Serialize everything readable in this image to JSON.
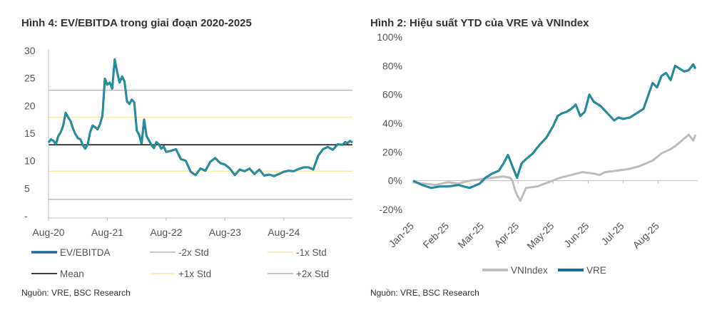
{
  "chart_data": [
    {
      "type": "line",
      "title": "Hình 4: EV/EBITDA trong giai đoạn 2020-2025",
      "source": "Nguồn: VRE, BSC Research",
      "xlabel": "",
      "ylabel": "",
      "x_tick_labels": [
        "Aug-20",
        "Aug-21",
        "Aug-22",
        "Aug-23",
        "Aug-24"
      ],
      "y_tick_labels": [
        "-",
        "5",
        "10",
        "15",
        "20",
        "25",
        "30"
      ],
      "y_ticks": [
        0,
        5,
        10,
        15,
        20,
        25,
        30
      ],
      "ylim": [
        0,
        30
      ],
      "xlim_months": [
        0,
        62
      ],
      "series": [
        {
          "name": "EV/EBITDA",
          "color": "#1a6a9a",
          "x_months": [
            0,
            0.5,
            1,
            1.5,
            2,
            2.5,
            3,
            3.5,
            4,
            4.5,
            5,
            5.5,
            6,
            6.5,
            7,
            7.5,
            8,
            8.5,
            9,
            9.5,
            10,
            10.5,
            11,
            11.5,
            12,
            12.5,
            13,
            13.5,
            14,
            14.5,
            15,
            15.5,
            16,
            16.5,
            17,
            17.5,
            18,
            18.5,
            19,
            19.5,
            20,
            20.5,
            21,
            21.5,
            22,
            22.5,
            23,
            23.5,
            24,
            25,
            26,
            27,
            28,
            29,
            30,
            31,
            32,
            33,
            34,
            35,
            36,
            37,
            38,
            39,
            40,
            41,
            42,
            43,
            44,
            45,
            46,
            47,
            48,
            49,
            50,
            51,
            52,
            53,
            54,
            55,
            56,
            57,
            58,
            59,
            60,
            60.5,
            61,
            61.5,
            62
          ],
          "values": [
            13.3,
            13.9,
            13.6,
            13.0,
            14.5,
            15.2,
            16.4,
            18.7,
            17.9,
            17.2,
            15.8,
            14.8,
            14.1,
            13.9,
            12.8,
            12.2,
            13.0,
            15.2,
            16.4,
            16.1,
            15.7,
            16.6,
            18.2,
            24.9,
            23.8,
            24.2,
            23.1,
            28.4,
            26.1,
            24.2,
            25.3,
            24.4,
            20.8,
            20.3,
            21.1,
            20.6,
            15.5,
            14.7,
            13.1,
            17.5,
            14.5,
            13.7,
            12.8,
            12.3,
            13.4,
            13.0,
            12.2,
            12.6,
            11.6,
            11.8,
            12.1,
            10.3,
            10.0,
            8.0,
            7.4,
            8.6,
            8.2,
            9.8,
            10.5,
            9.6,
            9.3,
            8.6,
            7.4,
            8.4,
            8.1,
            8.6,
            7.6,
            8.4,
            7.3,
            7.5,
            7.2,
            7.6,
            8.0,
            8.2,
            8.1,
            8.5,
            8.8,
            8.8,
            8.4,
            10.9,
            12.1,
            12.5,
            12.0,
            13.0,
            12.9,
            13.4,
            13.2,
            13.6,
            13.3
          ]
        },
        {
          "name": "-2x Std",
          "color": "#b8b8b8",
          "values": [
            3.0
          ]
        },
        {
          "name": "-1x Std",
          "color": "#fbe8a6",
          "values": [
            8.1
          ]
        },
        {
          "name": "Mean",
          "color": "#000000",
          "values": [
            12.9
          ]
        },
        {
          "name": "+1x Std",
          "color": "#fbe8a6",
          "values": [
            17.9
          ]
        },
        {
          "name": "+2x Std",
          "color": "#b8b8b8",
          "values": [
            22.8
          ]
        }
      ],
      "legend": [
        "EV/EBITDA",
        "-2x Std",
        "-1x Std",
        "Mean",
        "+1x Std",
        "+2x Std"
      ],
      "legend_position": "bottom",
      "grid": false
    },
    {
      "type": "line",
      "title": "Hình 2: Hiệu suất YTD của VRE và VNIndex",
      "source": "Nguồn: VRE, BSC Research",
      "xlabel": "",
      "ylabel": "",
      "x_tick_labels": [
        "Jan-25",
        "Feb-25",
        "Mar-25",
        "Apr-25",
        "May-25",
        "Jun-25",
        "Jul-25",
        "Aug-25"
      ],
      "y_tick_labels": [
        "-20%",
        "0%",
        "20%",
        "40%",
        "60%",
        "80%",
        "100%"
      ],
      "y_ticks": [
        -20,
        0,
        20,
        40,
        60,
        80,
        100
      ],
      "ylim": [
        -20,
        100
      ],
      "xlim_days": [
        0,
        252
      ],
      "series": [
        {
          "name": "VNIndex",
          "color": "#bdbdbd",
          "x_days": [
            0,
            10,
            20,
            31,
            40,
            50,
            59,
            70,
            80,
            86,
            88,
            90,
            92,
            95,
            100,
            110,
            120,
            130,
            140,
            150,
            160,
            165,
            170,
            180,
            190,
            200,
            212,
            220,
            228,
            232,
            238,
            244,
            248,
            250
          ],
          "values": [
            -1,
            -2,
            -3,
            -1,
            -2,
            0,
            1,
            2,
            3,
            2,
            0,
            -6,
            -10,
            -14,
            -5,
            -4,
            -1,
            2,
            4,
            6,
            5,
            4,
            6,
            7,
            8,
            10,
            14,
            19,
            22,
            24,
            28,
            32,
            28,
            32
          ]
        },
        {
          "name": "VRE",
          "color": "#1a6a9a",
          "x_days": [
            0,
            8,
            16,
            24,
            31,
            40,
            50,
            59,
            64,
            70,
            76,
            80,
            84,
            88,
            92,
            96,
            100,
            106,
            112,
            118,
            124,
            128,
            132,
            136,
            140,
            144,
            148,
            152,
            156,
            160,
            166,
            172,
            178,
            182,
            186,
            192,
            198,
            204,
            212,
            216,
            220,
            224,
            228,
            232,
            236,
            240,
            244,
            248,
            250
          ],
          "values": [
            0,
            -3,
            -5,
            -4,
            -4,
            -3,
            -5,
            -2,
            2,
            5,
            7,
            12,
            18,
            10,
            2,
            12,
            15,
            19,
            25,
            30,
            38,
            45,
            47,
            48,
            50,
            53,
            45,
            48,
            60,
            55,
            52,
            47,
            42,
            44,
            43,
            44,
            47,
            50,
            68,
            65,
            73,
            75,
            70,
            80,
            78,
            76,
            77,
            81,
            78
          ]
        }
      ],
      "legend": [
        "VNIndex",
        "VRE"
      ],
      "legend_position": "bottom",
      "grid": false
    }
  ]
}
